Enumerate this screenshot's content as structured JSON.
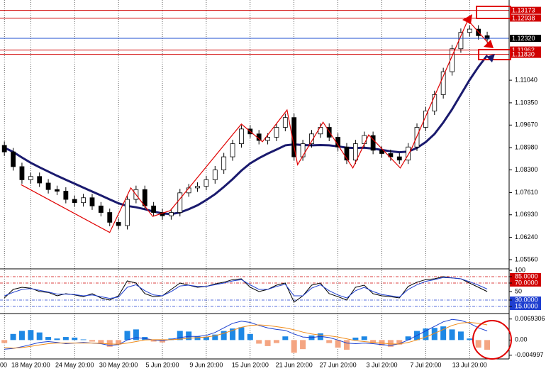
{
  "chart_data": [
    {
      "type": "candlestick",
      "categories": [
        "00",
        null,
        null,
        "18 May 20:00",
        null,
        null,
        null,
        null,
        "24 May 20:00",
        null,
        null,
        null,
        null,
        "30 May 20:00",
        null,
        null,
        null,
        null,
        "5 Jun 20:00",
        null,
        null,
        null,
        null,
        "9 Jun 20:00",
        null,
        null,
        null,
        null,
        "15 Jun 20:00",
        null,
        null,
        null,
        null,
        "21 Jun 20:00",
        null,
        null,
        null,
        null,
        "27 Jun 20:00",
        null,
        null,
        null,
        null,
        "3 Jul 20:00",
        null,
        null,
        null,
        null,
        "7 Jul 20:00",
        null,
        null,
        null,
        null,
        "13 Jul 20:00",
        null,
        null
      ],
      "open": [
        1.0905,
        1.0885,
        1.084,
        1.08,
        1.081,
        1.079,
        1.077,
        1.0765,
        1.074,
        1.073,
        1.0745,
        1.072,
        1.07,
        1.067,
        1.066,
        1.074,
        1.077,
        1.072,
        1.07,
        1.069,
        1.07,
        1.076,
        1.0775,
        1.078,
        1.08,
        1.083,
        1.087,
        1.091,
        1.0955,
        1.094,
        1.092,
        1.093,
        1.096,
        1.099,
        1.087,
        1.091,
        1.094,
        1.096,
        1.093,
        1.09,
        1.086,
        1.091,
        1.0935,
        1.089,
        1.088,
        1.087,
        1.086,
        1.09,
        1.096,
        1.101,
        1.106,
        1.113,
        1.12,
        1.125,
        1.126,
        1.124
      ],
      "high": [
        1.0917,
        1.0897,
        1.0852,
        1.0822,
        1.0822,
        1.0802,
        1.0782,
        1.0777,
        1.0752,
        1.0757,
        1.0757,
        1.0732,
        1.0712,
        1.0682,
        1.0752,
        1.0782,
        1.0782,
        1.0732,
        1.0712,
        1.0712,
        1.0772,
        1.0787,
        1.0792,
        1.0812,
        1.0842,
        1.0882,
        1.0922,
        1.0967,
        1.0967,
        1.0952,
        1.0942,
        1.0972,
        1.1002,
        1.1002,
        1.0922,
        1.0952,
        1.0972,
        1.0972,
        1.0942,
        1.0912,
        1.0922,
        1.0947,
        1.0947,
        1.0902,
        1.0892,
        1.0882,
        1.0912,
        1.0972,
        1.1022,
        1.1072,
        1.1142,
        1.1212,
        1.1262,
        1.1272,
        1.1272,
        1.1252
      ],
      "low": [
        1.0873,
        1.0828,
        1.0788,
        1.0788,
        1.0778,
        1.0758,
        1.0753,
        1.0728,
        1.0718,
        1.0718,
        1.0708,
        1.0688,
        1.0658,
        1.0648,
        1.0648,
        1.0728,
        1.0708,
        1.0688,
        1.0678,
        1.0678,
        1.0688,
        1.0748,
        1.0763,
        1.0768,
        1.0788,
        1.0818,
        1.0858,
        1.0898,
        1.0928,
        1.0908,
        1.0908,
        1.0918,
        1.0948,
        1.0858,
        1.0858,
        1.0898,
        1.0928,
        1.0918,
        1.0888,
        1.0848,
        1.0848,
        1.0898,
        1.0878,
        1.0868,
        1.0858,
        1.0848,
        1.0848,
        1.0888,
        1.0948,
        1.0998,
        1.1048,
        1.1118,
        1.1188,
        1.1238,
        1.1228,
        1.1218
      ],
      "close": [
        1.0885,
        1.084,
        1.08,
        1.081,
        1.079,
        1.077,
        1.0765,
        1.074,
        1.073,
        1.0745,
        1.072,
        1.07,
        1.067,
        1.066,
        1.074,
        1.077,
        1.072,
        1.07,
        1.069,
        1.07,
        1.076,
        1.0775,
        1.078,
        1.08,
        1.083,
        1.087,
        1.091,
        1.0955,
        1.094,
        1.092,
        1.093,
        1.096,
        1.099,
        1.087,
        1.091,
        1.094,
        1.096,
        1.093,
        1.09,
        1.086,
        1.091,
        1.0935,
        1.089,
        1.088,
        1.087,
        1.086,
        1.09,
        1.096,
        1.101,
        1.106,
        1.113,
        1.12,
        1.125,
        1.126,
        1.124,
        1.123
      ],
      "up_color": "#ffffff",
      "down_color": "#000000",
      "series": [
        {
          "color": "#1a1a6e",
          "values": [
            1.0898,
            1.0885,
            1.0868,
            1.0852,
            1.0838,
            1.0825,
            1.0812,
            1.08,
            1.0788,
            1.0776,
            1.0764,
            1.0752,
            1.074,
            1.0728,
            1.072,
            1.0716,
            1.071,
            1.0703,
            1.0697,
            1.0695,
            1.07,
            1.071,
            1.0722,
            1.0738,
            1.0756,
            1.0778,
            1.0802,
            1.0828,
            1.085,
            1.0866,
            1.088,
            1.0892,
            1.0905,
            1.0908,
            1.0906,
            1.0905,
            1.0906,
            1.0905,
            1.0902,
            1.0898,
            1.0897,
            1.0898,
            1.0895,
            1.0891,
            1.0887,
            1.0884,
            1.0886,
            1.0897,
            1.0915,
            1.094,
            1.0975,
            1.1015,
            1.106,
            1.1105,
            1.1145,
            1.118
          ]
        }
      ],
      "zigzag": {
        "color": "#e00000",
        "x": [
          1.9,
          12,
          14.4,
          16.9,
          18.9,
          27,
          29.4,
          32.2,
          33.4,
          36.3,
          39.7,
          41.5,
          45.1,
          46.3,
          52.8,
          55.2
        ],
        "values": [
          1.0785,
          1.0639,
          1.0775,
          1.0688,
          1.0706,
          1.097,
          1.0916,
          1.1013,
          1.0846,
          1.0976,
          1.0836,
          1.0937,
          1.0836,
          1.089,
          1.1288,
          1.1215
        ]
      },
      "price_levels": {
        "values": [
          1.13173,
          1.12938,
          1.1232,
          1.11962,
          1.1183
        ],
        "value_labels": [
          "1.13173",
          "1.12938",
          "1.12320",
          "1.11962",
          "1.11830"
        ],
        "colors": [
          "#d00000",
          "#d00000",
          "#1f4fd0",
          "#d00000",
          "#d00000"
        ],
        "label_colors": [
          "#d00000",
          "#d00000",
          "#000000",
          "#d00000",
          "#d00000"
        ]
      },
      "ylim": [
        1.053,
        1.1349
      ],
      "yticks": [
        {
          "value": 1.0556,
          "label": "1.05560"
        },
        {
          "value": 1.0624,
          "label": "1.06240"
        },
        {
          "value": 1.0693,
          "label": "1.06930"
        },
        {
          "value": 1.0761,
          "label": "1.07610"
        },
        {
          "value": 1.083,
          "label": "1.08300"
        },
        {
          "value": 1.0898,
          "label": "1.08980"
        },
        {
          "value": 1.0967,
          "label": "1.09670"
        },
        {
          "value": 1.1035,
          "label": "1.10350"
        },
        {
          "value": 1.1104,
          "label": "1.11040"
        }
      ]
    },
    {
      "type": "line",
      "series": [
        {
          "color": "#000000",
          "values": [
            35,
            55,
            60,
            58,
            50,
            48,
            40,
            45,
            42,
            38,
            45,
            35,
            30,
            40,
            75,
            70,
            45,
            38,
            40,
            55,
            70,
            65,
            60,
            62,
            68,
            72,
            78,
            80,
            60,
            50,
            55,
            65,
            70,
            25,
            40,
            65,
            70,
            45,
            38,
            30,
            60,
            65,
            45,
            40,
            38,
            35,
            62,
            72,
            78,
            80,
            85,
            82,
            80,
            70,
            60,
            50
          ]
        },
        {
          "color": "#2040d0",
          "values": [
            40,
            48,
            55,
            57,
            53,
            49,
            44,
            44,
            43,
            40,
            42,
            38,
            34,
            37,
            60,
            66,
            52,
            42,
            40,
            50,
            63,
            65,
            62,
            62,
            66,
            70,
            75,
            78,
            66,
            55,
            55,
            62,
            67,
            40,
            40,
            58,
            66,
            52,
            42,
            35,
            52,
            60,
            50,
            43,
            40,
            37,
            55,
            66,
            74,
            78,
            83,
            82,
            80,
            73,
            65,
            56
          ]
        }
      ],
      "ylim": [
        0,
        100
      ],
      "yticks": [
        100,
        {
          "value": 85,
          "label": "85.0000"
        },
        {
          "value": 70,
          "label": "70.0000"
        },
        50,
        {
          "value": 30,
          "label": "30.0000"
        },
        {
          "value": 15,
          "label": "15.0000"
        }
      ],
      "ytick_colors": [
        null,
        "#d00000",
        "#d00000",
        null,
        "#1f3fd0",
        "#1f3fd0"
      ]
    },
    {
      "type": "bar",
      "values": [
        -0.001,
        0.002,
        0.003,
        0.0033,
        0.0025,
        0.001,
        0.0005,
        0.001,
        0.0008,
        0.0002,
        -0.0005,
        -0.0012,
        -0.0022,
        -0.0015,
        0.003,
        0.0035,
        0.001,
        -0.0005,
        -0.0008,
        0.0005,
        0.003,
        0.0028,
        0.0012,
        0.001,
        0.0018,
        0.003,
        0.0038,
        0.0042,
        0.002,
        -0.0012,
        -0.002,
        -0.001,
        0.0012,
        -0.0042,
        -0.003,
        0.0015,
        0.0022,
        -0.001,
        -0.0025,
        -0.0032,
        0.0008,
        0.0012,
        -0.001,
        -0.0018,
        -0.0022,
        -0.0015,
        0.0012,
        0.003,
        0.0038,
        0.004,
        0.0045,
        0.0035,
        0.0028,
        0.0005,
        -0.0025,
        -0.0032
      ],
      "color": "#1e88e5",
      "negative_color": "#f4a582",
      "series": [
        {
          "color": "#1a3fd0",
          "values": [
            -0.003,
            -0.0028,
            -0.0022,
            -0.0015,
            -0.0008,
            -0.0005,
            -0.0008,
            -0.0012,
            -0.001,
            -0.0008,
            -0.001,
            -0.0012,
            -0.0018,
            -0.0015,
            0.0,
            0.0008,
            0.0005,
            0.0,
            -0.0002,
            0.0002,
            0.0008,
            0.0012,
            0.0012,
            0.0015,
            0.0025,
            0.004,
            0.0055,
            0.0062,
            0.0058,
            0.0048,
            0.004,
            0.0035,
            0.0032,
            0.002,
            0.001,
            0.0008,
            0.0012,
            0.0008,
            0.0,
            -0.001,
            -0.0012,
            -0.001,
            -0.0012,
            -0.0015,
            -0.0018,
            -0.0012,
            0.0,
            0.0015,
            0.003,
            0.0045,
            0.006,
            0.0068,
            0.0065,
            0.0055,
            0.004,
            0.003
          ]
        },
        {
          "color": "#f08c1a",
          "values": [
            -0.0025,
            -0.0027,
            -0.0025,
            -0.0021,
            -0.0016,
            -0.0012,
            -0.001,
            -0.001,
            -0.001,
            -0.001,
            -0.001,
            -0.0011,
            -0.0013,
            -0.0014,
            -0.001,
            -0.0005,
            0.0,
            0.0001,
            0.0001,
            0.0001,
            0.0003,
            0.0006,
            0.0008,
            0.001,
            0.0014,
            0.0022,
            0.0032,
            0.0042,
            0.0048,
            0.005,
            0.0048,
            0.0044,
            0.004,
            0.0034,
            0.0026,
            0.002,
            0.0016,
            0.0014,
            0.001,
            0.0004,
            -0.0002,
            -0.0005,
            -0.0008,
            -0.001,
            -0.0013,
            -0.0013,
            -0.0008,
            0.0,
            0.001,
            0.0022,
            0.0035,
            0.0048,
            0.0056,
            0.0058,
            0.0055,
            0.005
          ]
        }
      ],
      "ylim": [
        -0.006,
        0.0085
      ],
      "yticks": [
        0.0069306,
        {
          "value": 0,
          "label": "0.00"
        },
        -0.004997
      ]
    }
  ]
}
